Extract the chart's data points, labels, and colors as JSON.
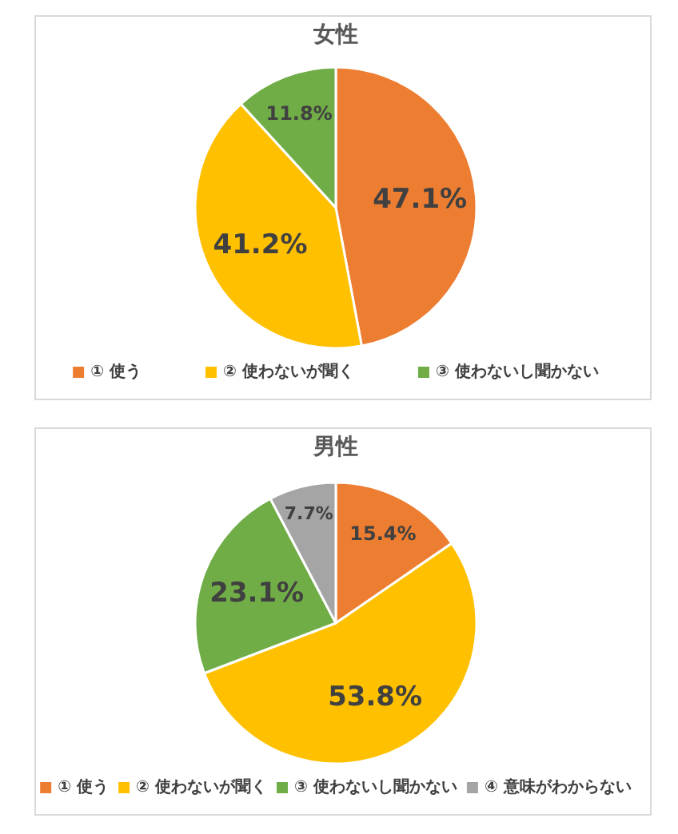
{
  "chart_data": [
    {
      "type": "pie",
      "title": "女性",
      "categories": [
        "① 使う",
        "② 使わないが聞く",
        "③ 使わないし聞かない"
      ],
      "values": [
        47.1,
        41.2,
        11.8
      ],
      "colors": [
        "#ed7d31",
        "#ffc000",
        "#70ad47"
      ],
      "value_labels": [
        "47.1%",
        "41.2%",
        "11.8%"
      ],
      "legend": "bottom"
    },
    {
      "type": "pie",
      "title": "男性",
      "categories": [
        "① 使う",
        "② 使わないが聞く",
        "③ 使わないし聞かない",
        "④ 意味がわからない"
      ],
      "values": [
        15.4,
        53.8,
        23.1,
        7.7
      ],
      "colors": [
        "#ed7d31",
        "#ffc000",
        "#70ad47",
        "#a5a5a5"
      ],
      "value_labels": [
        "15.4%",
        "53.8%",
        "23.1%",
        "7.7%"
      ],
      "legend": "bottom"
    }
  ]
}
